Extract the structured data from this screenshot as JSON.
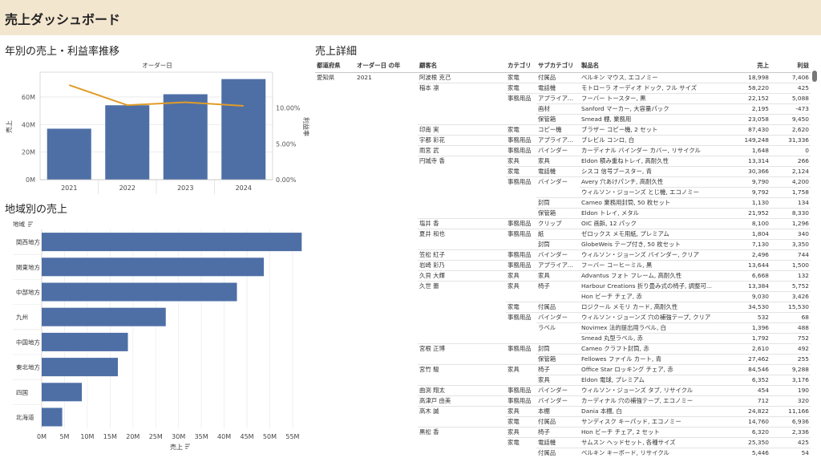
{
  "page": {
    "title": "売上ダッシュボード"
  },
  "yearly": {
    "title": "年別の売上・利益率推移",
    "column_header": "オーダー日",
    "ylabel_left": "売上",
    "ylabel_right": "利益率",
    "left_ticks": [
      "0M",
      "20M",
      "40M",
      "60M"
    ],
    "right_ticks": [
      "0.00%",
      "5.00%",
      "10.00%"
    ],
    "bar_color": "#4e6fa6",
    "line_color": "#e09c28"
  },
  "regional": {
    "title": "地域別の売上",
    "row_header": "地域",
    "xlabel": "売上",
    "x_ticks": [
      "0M",
      "5M",
      "10M",
      "15M",
      "20M",
      "25M",
      "30M",
      "35M",
      "40M",
      "45M",
      "50M",
      "55M"
    ],
    "bar_color": "#4e6fa6"
  },
  "chart_data": [
    {
      "type": "bar",
      "categories": [
        "2021",
        "2022",
        "2023",
        "2024"
      ],
      "series": [
        {
          "name": "売上",
          "values": [
            37,
            54,
            62,
            73
          ]
        },
        {
          "name": "利益率",
          "values": [
            13.2,
            10.4,
            10.8,
            10.3
          ]
        }
      ],
      "title": "年別の売上・利益率推移",
      "xlabel": "オーダー日",
      "ylabel": "売上",
      "ylim": [
        0,
        78
      ],
      "y2lim": [
        0,
        15
      ],
      "grid": true
    },
    {
      "type": "bar",
      "categories": [
        "関西地方",
        "関東地方",
        "中部地方",
        "九州",
        "中国地方",
        "東北地方",
        "四国",
        "北海道"
      ],
      "values": [
        57,
        48.7,
        42.8,
        27.2,
        18.9,
        16.7,
        8.8,
        4.5
      ],
      "title": "地域別の売上",
      "xlabel": "売上",
      "ylabel": "地域",
      "xlim": [
        0,
        58
      ],
      "grid": true
    }
  ],
  "detail": {
    "title": "売上詳細",
    "headers": [
      "都道府県",
      "オーダー日 の年",
      "顧客名",
      "カテゴリ",
      "サブカテゴリ",
      "製品名",
      "売上",
      "利益"
    ],
    "rows": [
      [
        "愛知県",
        "2021",
        "阿波根 克己",
        "家電",
        "付属品",
        "ベルキン マウス, エコノミー",
        "18,998",
        "7,406"
      ],
      [
        "",
        "",
        "稲本 凛",
        "家電",
        "電話機",
        "モトローラ オーディオ ドック, フル サイズ",
        "58,220",
        "425"
      ],
      [
        "",
        "",
        "",
        "事務用品",
        "アプライアン...",
        "フーバー トースター, 黒",
        "22,152",
        "5,088"
      ],
      [
        "",
        "",
        "",
        "",
        "画材",
        "Sanford マーカー, 大容量パック",
        "2,195",
        "-473"
      ],
      [
        "",
        "",
        "",
        "",
        "保管箱",
        "Smead 棚, 業務用",
        "23,058",
        "9,450"
      ],
      [
        "",
        "",
        "印南 実",
        "家電",
        "コピー機",
        "ブラザー コピー機, 2 セット",
        "87,430",
        "2,620"
      ],
      [
        "",
        "",
        "宇都 彩花",
        "事務用品",
        "アプライアン...",
        "ブレビル コンロ, 白",
        "149,248",
        "31,336"
      ],
      [
        "",
        "",
        "雨宮 武",
        "事務用品",
        "バインダー",
        "カーディナル バインダー カバー, リサイクル",
        "1,648",
        "0"
      ],
      [
        "",
        "",
        "円城寺 香",
        "家具",
        "家具",
        "Eldon 積み重ねトレイ, 高耐久性",
        "13,314",
        "266"
      ],
      [
        "",
        "",
        "",
        "家電",
        "電話機",
        "シスコ 信号ブースター, 青",
        "30,366",
        "2,124"
      ],
      [
        "",
        "",
        "",
        "事務用品",
        "バインダー",
        "Avery 穴あけパンチ, 高耐久性",
        "9,790",
        "4,200"
      ],
      [
        "",
        "",
        "",
        "",
        "",
        "ウィルソン・ジョーンズ とじ機, エコノミー",
        "9,792",
        "1,758"
      ],
      [
        "",
        "",
        "",
        "",
        "封筒",
        "Cameo 業務用封筒, 50 枚セット",
        "1,130",
        "134"
      ],
      [
        "",
        "",
        "",
        "",
        "保管箱",
        "Eldon トレイ, メタル",
        "21,952",
        "8,330"
      ],
      [
        "",
        "",
        "塩井 香",
        "事務用品",
        "クリップ",
        "OIC 画鋲, 12 パック",
        "8,100",
        "1,296"
      ],
      [
        "",
        "",
        "夏井 和也",
        "事務用品",
        "紙",
        "ゼロックス メモ用紙, プレミアム",
        "1,804",
        "340"
      ],
      [
        "",
        "",
        "",
        "",
        "封筒",
        "GlobeWeis テープ付き, 50 枚セット",
        "7,130",
        "3,350"
      ],
      [
        "",
        "",
        "笠松 紅子",
        "事務用品",
        "バインダー",
        "ウィルソン・ジョーンズ バインダー, クリア",
        "2,496",
        "744"
      ],
      [
        "",
        "",
        "岩崎 彩乃",
        "事務用品",
        "アプライアン...",
        "フーバー コーヒーミル, 黒",
        "13,644",
        "1,500"
      ],
      [
        "",
        "",
        "久貝 大輝",
        "家具",
        "家具",
        "Advantus フォト フレーム, 高耐久性",
        "6,668",
        "132"
      ],
      [
        "",
        "",
        "久世 蕾",
        "家具",
        "椅子",
        "Harbour Creations 折り畳み式の椅子, 調整可...",
        "13,384",
        "5,752"
      ],
      [
        "",
        "",
        "",
        "",
        "",
        "Hon ビーチ チェア, 赤",
        "9,030",
        "3,426"
      ],
      [
        "",
        "",
        "",
        "家電",
        "付属品",
        "ロジクール メモリ カード, 高耐久性",
        "34,530",
        "15,530"
      ],
      [
        "",
        "",
        "",
        "事務用品",
        "バインダー",
        "ウィルソン・ジョーンズ 穴の補強テープ, クリア",
        "532",
        "68"
      ],
      [
        "",
        "",
        "",
        "",
        "ラベル",
        "Novimex 法的提出用ラベル, 白",
        "1,396",
        "488"
      ],
      [
        "",
        "",
        "",
        "",
        "",
        "Smead 丸型ラベル, 赤",
        "1,792",
        "752"
      ],
      [
        "",
        "",
        "宮根 正博",
        "事務用品",
        "封筒",
        "Cameo クラフト封筒, 赤",
        "2,610",
        "492"
      ],
      [
        "",
        "",
        "",
        "",
        "保管箱",
        "Fellowes ファイル カート, 青",
        "27,462",
        "255"
      ],
      [
        "",
        "",
        "宮竹 駿",
        "家具",
        "椅子",
        "Office Star ロッキング チェア, 赤",
        "84,546",
        "9,288"
      ],
      [
        "",
        "",
        "",
        "",
        "家具",
        "Eldon 電球, プレミアム",
        "6,352",
        "3,176"
      ],
      [
        "",
        "",
        "曲渕 翔太",
        "事務用品",
        "バインダー",
        "ウィルソン・ジョーンズ タブ, リサイクル",
        "454",
        "190"
      ],
      [
        "",
        "",
        "高津戸 由美",
        "事務用品",
        "バインダー",
        "カーディナル 穴の補強テープ, エコノミー",
        "712",
        "320"
      ],
      [
        "",
        "",
        "高木 誠",
        "家具",
        "本棚",
        "Dania 本棚, 白",
        "24,822",
        "11,166"
      ],
      [
        "",
        "",
        "",
        "家電",
        "付属品",
        "サンディスク キーパッド, エコノミー",
        "14,760",
        "6,936"
      ],
      [
        "",
        "",
        "黒松 香",
        "家具",
        "椅子",
        "Hon ビーチ チェア, 2 セット",
        "6,320",
        "2,336"
      ],
      [
        "",
        "",
        "",
        "家電",
        "電話機",
        "サムスン ヘッドセット, 各種サイズ",
        "25,350",
        "425"
      ],
      [
        "",
        "",
        "",
        "",
        "付属品",
        "ベルキン キーボード, リサイクル",
        "5,446",
        "54"
      ]
    ]
  }
}
